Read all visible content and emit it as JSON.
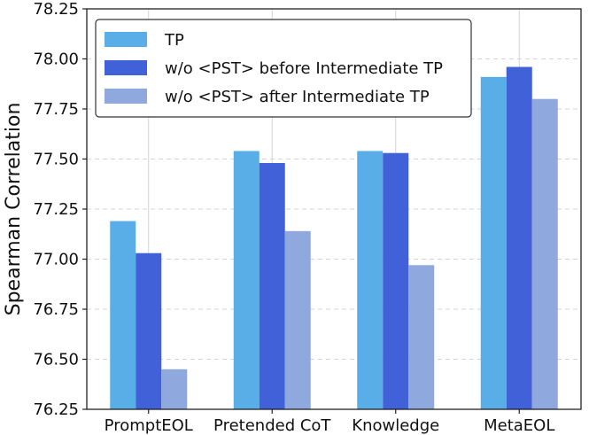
{
  "chart_data": {
    "type": "bar",
    "title": "",
    "xlabel": "",
    "ylabel": "Spearman Correlation",
    "ylim": [
      76.25,
      78.25
    ],
    "yticks": [
      76.25,
      76.5,
      76.75,
      77.0,
      77.25,
      77.5,
      77.75,
      78.0,
      78.25
    ],
    "ytick_labels": [
      "76.25",
      "76.50",
      "76.75",
      "77.00",
      "77.25",
      "77.50",
      "77.75",
      "78.00",
      "78.25"
    ],
    "grid": true,
    "legend_position": "top-left",
    "categories": [
      "PromptEOL",
      "Pretended CoT",
      "Knowledge",
      "MetaEOL"
    ],
    "series": [
      {
        "name": "TP",
        "color": "#5aaee8",
        "values": [
          77.19,
          77.54,
          77.54,
          77.91
        ]
      },
      {
        "name": "w/o <PST> before Intermediate TP",
        "color": "#4061d8",
        "values": [
          77.03,
          77.48,
          77.53,
          77.96
        ]
      },
      {
        "name": "w/o <PST> after Intermediate TP",
        "color": "#8fa8de",
        "values": [
          76.45,
          77.14,
          76.97,
          77.8
        ]
      }
    ]
  }
}
